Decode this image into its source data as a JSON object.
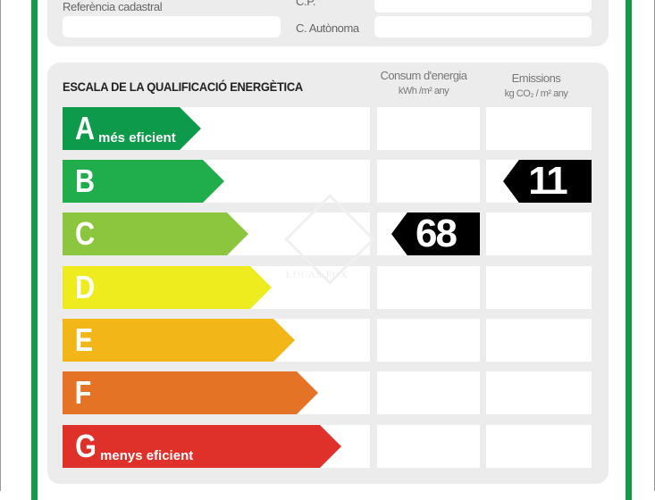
{
  "header": {
    "ref_label": "Referència cadastral",
    "cp_label": "C.P.",
    "ca_label": "C. Autònoma"
  },
  "scale": {
    "title": "ESCALA DE LA QUALIFICACIÓ ENERGÈTICA",
    "col_energy": {
      "title": "Consum d'energia",
      "unit": "kWh /m² any"
    },
    "col_emissions": {
      "title": "Emissions",
      "unit": "kg CO₂ / m² any"
    },
    "rows": [
      {
        "letter": "A",
        "sub": "més eficient",
        "color": "#0d9a4b"
      },
      {
        "letter": "B",
        "sub": "",
        "color": "#1fae4b"
      },
      {
        "letter": "C",
        "sub": "",
        "color": "#8cc63f"
      },
      {
        "letter": "D",
        "sub": "",
        "color": "#eeeb1f"
      },
      {
        "letter": "E",
        "sub": "",
        "color": "#f2b619"
      },
      {
        "letter": "F",
        "sub": "",
        "color": "#e47325"
      },
      {
        "letter": "G",
        "sub": "menys eficient",
        "color": "#e0302a"
      }
    ],
    "energy_value": "68",
    "energy_class": "C",
    "emissions_value": "11",
    "emissions_class": "B"
  },
  "watermark": {
    "text": "LUCAS FOX"
  }
}
